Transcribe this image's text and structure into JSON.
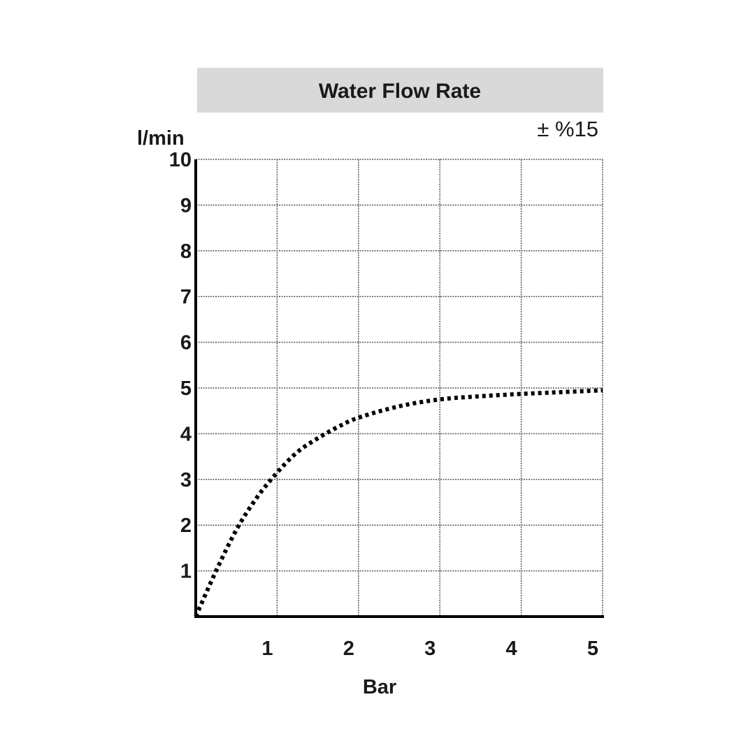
{
  "chart_data": {
    "type": "line",
    "title": "Water Flow Rate",
    "tolerance": "± %15",
    "xlabel": "Bar",
    "ylabel": "l/min",
    "xlim": [
      0,
      5
    ],
    "ylim": [
      0,
      10
    ],
    "x_ticks": [
      1,
      2,
      3,
      4,
      5
    ],
    "y_ticks": [
      1,
      2,
      3,
      4,
      5,
      6,
      7,
      8,
      9,
      10
    ],
    "grid": true,
    "series": [
      {
        "line_style": "dotted",
        "color": "#000000",
        "x": [
          0,
          0.25,
          0.5,
          0.75,
          1.0,
          1.25,
          1.5,
          1.75,
          2.0,
          2.5,
          3.0,
          3.5,
          4.0,
          4.5,
          5.0
        ],
        "y": [
          0,
          1.0,
          1.9,
          2.6,
          3.15,
          3.6,
          3.9,
          4.15,
          4.35,
          4.6,
          4.75,
          4.82,
          4.87,
          4.91,
          4.95
        ]
      }
    ]
  },
  "colors": {
    "title_background": "#d9d9d9",
    "axis": "#000000",
    "grid": "#555555"
  }
}
